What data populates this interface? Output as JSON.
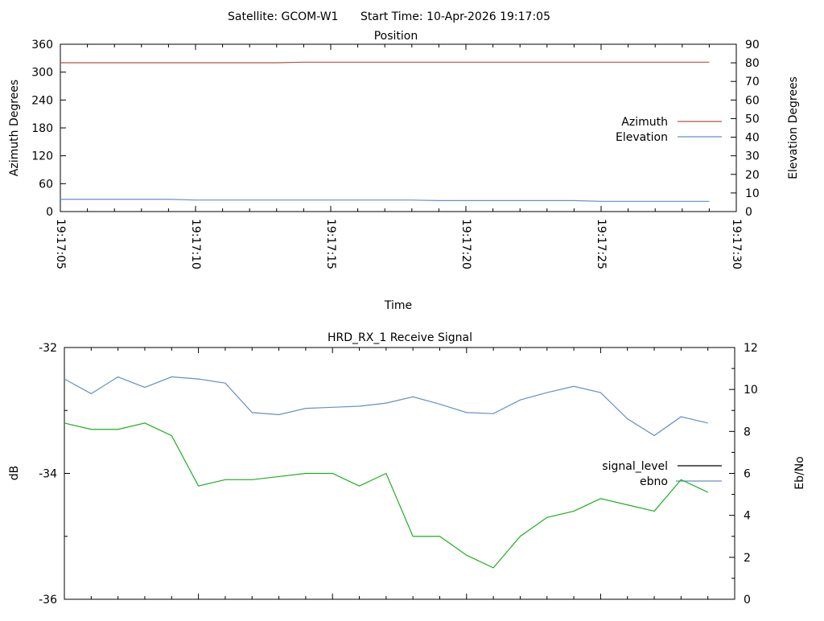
{
  "header": {
    "satellite_label": "Satellite: GCOM-W1",
    "start_time_label": "Start Time: 10-Apr-2026 19:17:05"
  },
  "colors": {
    "background": "#ffffff",
    "axis": "#000000",
    "azimuth_red": "#b5524e",
    "steel_blue": "#6191c5",
    "signal_green": "#1faf1f",
    "legend_black": "#000000"
  },
  "chart_data": [
    {
      "type": "line",
      "title": "Position",
      "xlabel": "Time",
      "ylabel_left": "Azimuth Degrees",
      "ylabel_right": "Elevation Degrees",
      "x_start": "19:17:05",
      "x_step_seconds": 1,
      "x_seconds_range": [
        0,
        25
      ],
      "x_tick_labels": [
        "19:17:05",
        "19:17:10",
        "19:17:15",
        "19:17:20",
        "19:17:25",
        "19:17:30"
      ],
      "ylim_left": [
        0,
        360
      ],
      "yticks_left": [
        0,
        60,
        120,
        180,
        240,
        300,
        360
      ],
      "ylim_right": [
        0,
        90
      ],
      "yticks_right": [
        0,
        10,
        20,
        30,
        40,
        50,
        60,
        70,
        80,
        90
      ],
      "grid": false,
      "legend_position": "right-center",
      "series": [
        {
          "name": "Azimuth",
          "axis": "left",
          "color": "#b5524e",
          "values": [
            320.2,
            320.2,
            320.2,
            320.2,
            320.2,
            320.2,
            320.2,
            320.2,
            320.2,
            321.4,
            321.4,
            321.4,
            321.4,
            321.4,
            321.4,
            321.4,
            321.4,
            321.4,
            321.4,
            321.4,
            321.4,
            321.4,
            321.4,
            321.4,
            321.4
          ]
        },
        {
          "name": "Elevation",
          "axis": "right",
          "color": "#6191c5",
          "values": [
            6.6,
            6.6,
            6.6,
            6.6,
            6.6,
            6.2,
            6.2,
            6.2,
            6.2,
            6.2,
            6.2,
            6.2,
            6.2,
            6.2,
            5.9,
            5.9,
            5.9,
            5.9,
            5.9,
            5.9,
            5.5,
            5.5,
            5.5,
            5.5,
            5.5
          ]
        }
      ]
    },
    {
      "type": "line",
      "title": "HRD_RX_1 Receive Signal",
      "xlabel": "",
      "ylabel_left": "dB",
      "ylabel_right": "Eb/No",
      "x_start": "19:17:05",
      "x_step_seconds": 1,
      "x_seconds_range": [
        0,
        25
      ],
      "x_tick_labels": [],
      "ylim_left": [
        -36,
        -32
      ],
      "yticks_left": [
        -32,
        -34,
        -36
      ],
      "yticks_left_minor": [
        -33,
        -35
      ],
      "ylim_right": [
        0,
        12
      ],
      "yticks_right": [
        0,
        2,
        4,
        6,
        8,
        10,
        12
      ],
      "yticks_right_minor": [
        1,
        3,
        5,
        7,
        9,
        11
      ],
      "grid": false,
      "legend_position": "right-center",
      "series": [
        {
          "name": "signal_level",
          "axis": "left",
          "color": "#1faf1f",
          "legend_color": "#000000",
          "values": [
            -33.2,
            -33.3,
            -33.3,
            -33.2,
            -33.4,
            -34.2,
            -34.1,
            -34.1,
            -34.05,
            -34.0,
            -34.0,
            -34.2,
            -34.0,
            -35.0,
            -35.0,
            -35.3,
            -35.5,
            -35.0,
            -34.7,
            -34.6,
            -34.4,
            -34.5,
            -34.6,
            -34.1,
            -34.3
          ]
        },
        {
          "name": "ebno",
          "axis": "right",
          "color": "#6191c5",
          "values": [
            10.5,
            9.8,
            10.6,
            10.1,
            10.6,
            10.5,
            10.3,
            8.9,
            8.8,
            9.1,
            9.15,
            9.2,
            9.35,
            9.65,
            9.3,
            8.9,
            8.85,
            9.5,
            9.85,
            10.15,
            9.85,
            8.6,
            7.8,
            8.7,
            8.4
          ]
        }
      ]
    }
  ]
}
